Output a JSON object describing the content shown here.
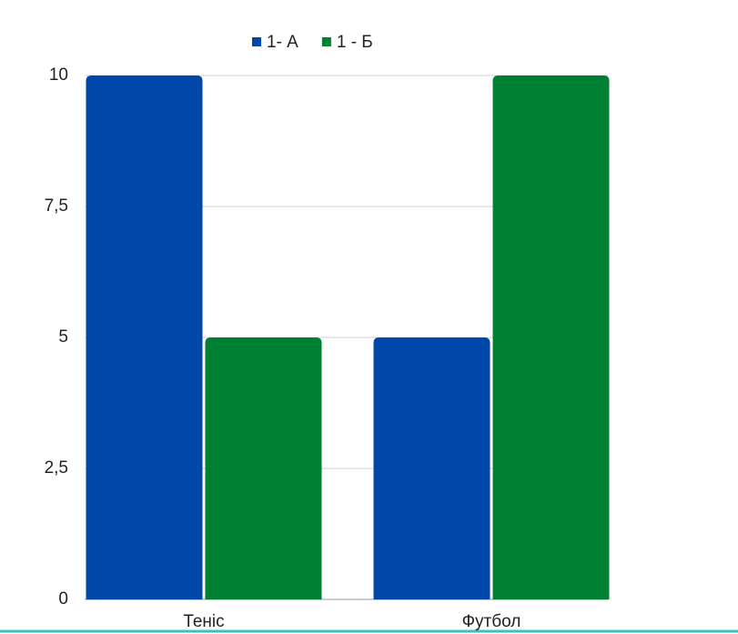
{
  "chart_data": {
    "type": "bar",
    "categories": [
      "Теніс",
      "Футбол"
    ],
    "series": [
      {
        "name": "1- А",
        "color": "#0047ab",
        "values": [
          10,
          5
        ]
      },
      {
        "name": "1 - Б",
        "color": "#008033",
        "values": [
          5,
          10
        ]
      }
    ],
    "ylim": [
      0,
      10
    ],
    "yticks": [
      0,
      {
        "value": 2.5,
        "label": "2,5"
      },
      5,
      {
        "value": 7.5,
        "label": "7,5"
      },
      10
    ],
    "grid": true,
    "legend": "top"
  }
}
